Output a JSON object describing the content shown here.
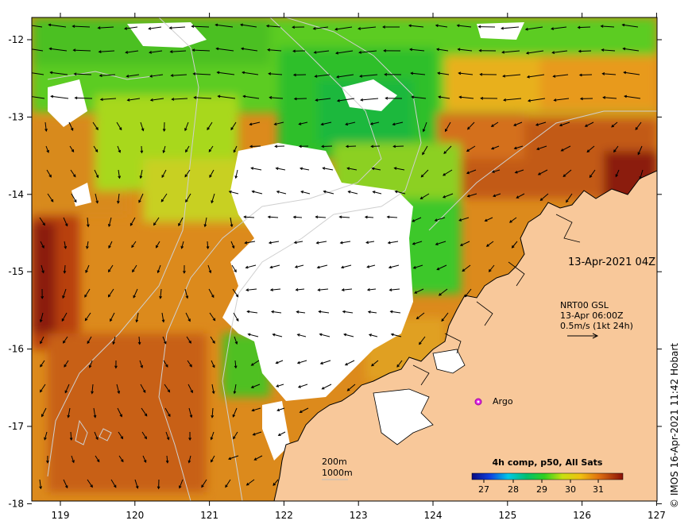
{
  "map": {
    "x_ticks": [
      "119",
      "120",
      "121",
      "122",
      "123",
      "124",
      "125",
      "126",
      "127"
    ],
    "y_ticks": [
      "-12",
      "-13",
      "-14",
      "-15",
      "-16",
      "-17",
      "-18"
    ],
    "timestamp_label": "13-Apr-2021 04Z",
    "current_legend": {
      "line1": "NRT00 GSL",
      "line2": "13-Apr 06:00Z",
      "line3": "0.5m/s (1kt 24h)"
    },
    "argo_label": "Argo",
    "bathymetry_legend": {
      "line1": "200m",
      "line2": "1000m"
    },
    "colorbar": {
      "title": "4h comp, p50, All Sats",
      "tick_labels": [
        "27",
        "28",
        "29",
        "30",
        "31"
      ]
    },
    "credit": "© IMOS 16-Apr-2021 11:42 Hobart"
  },
  "colors": {
    "land": "#f8c89a",
    "warm_dark": "#8b1a0a",
    "warm": "#d4701a",
    "orange": "#e89a1e",
    "yellow_green": "#a8d81e",
    "green": "#2fbf2a",
    "argo_marker": "#e020e0"
  }
}
